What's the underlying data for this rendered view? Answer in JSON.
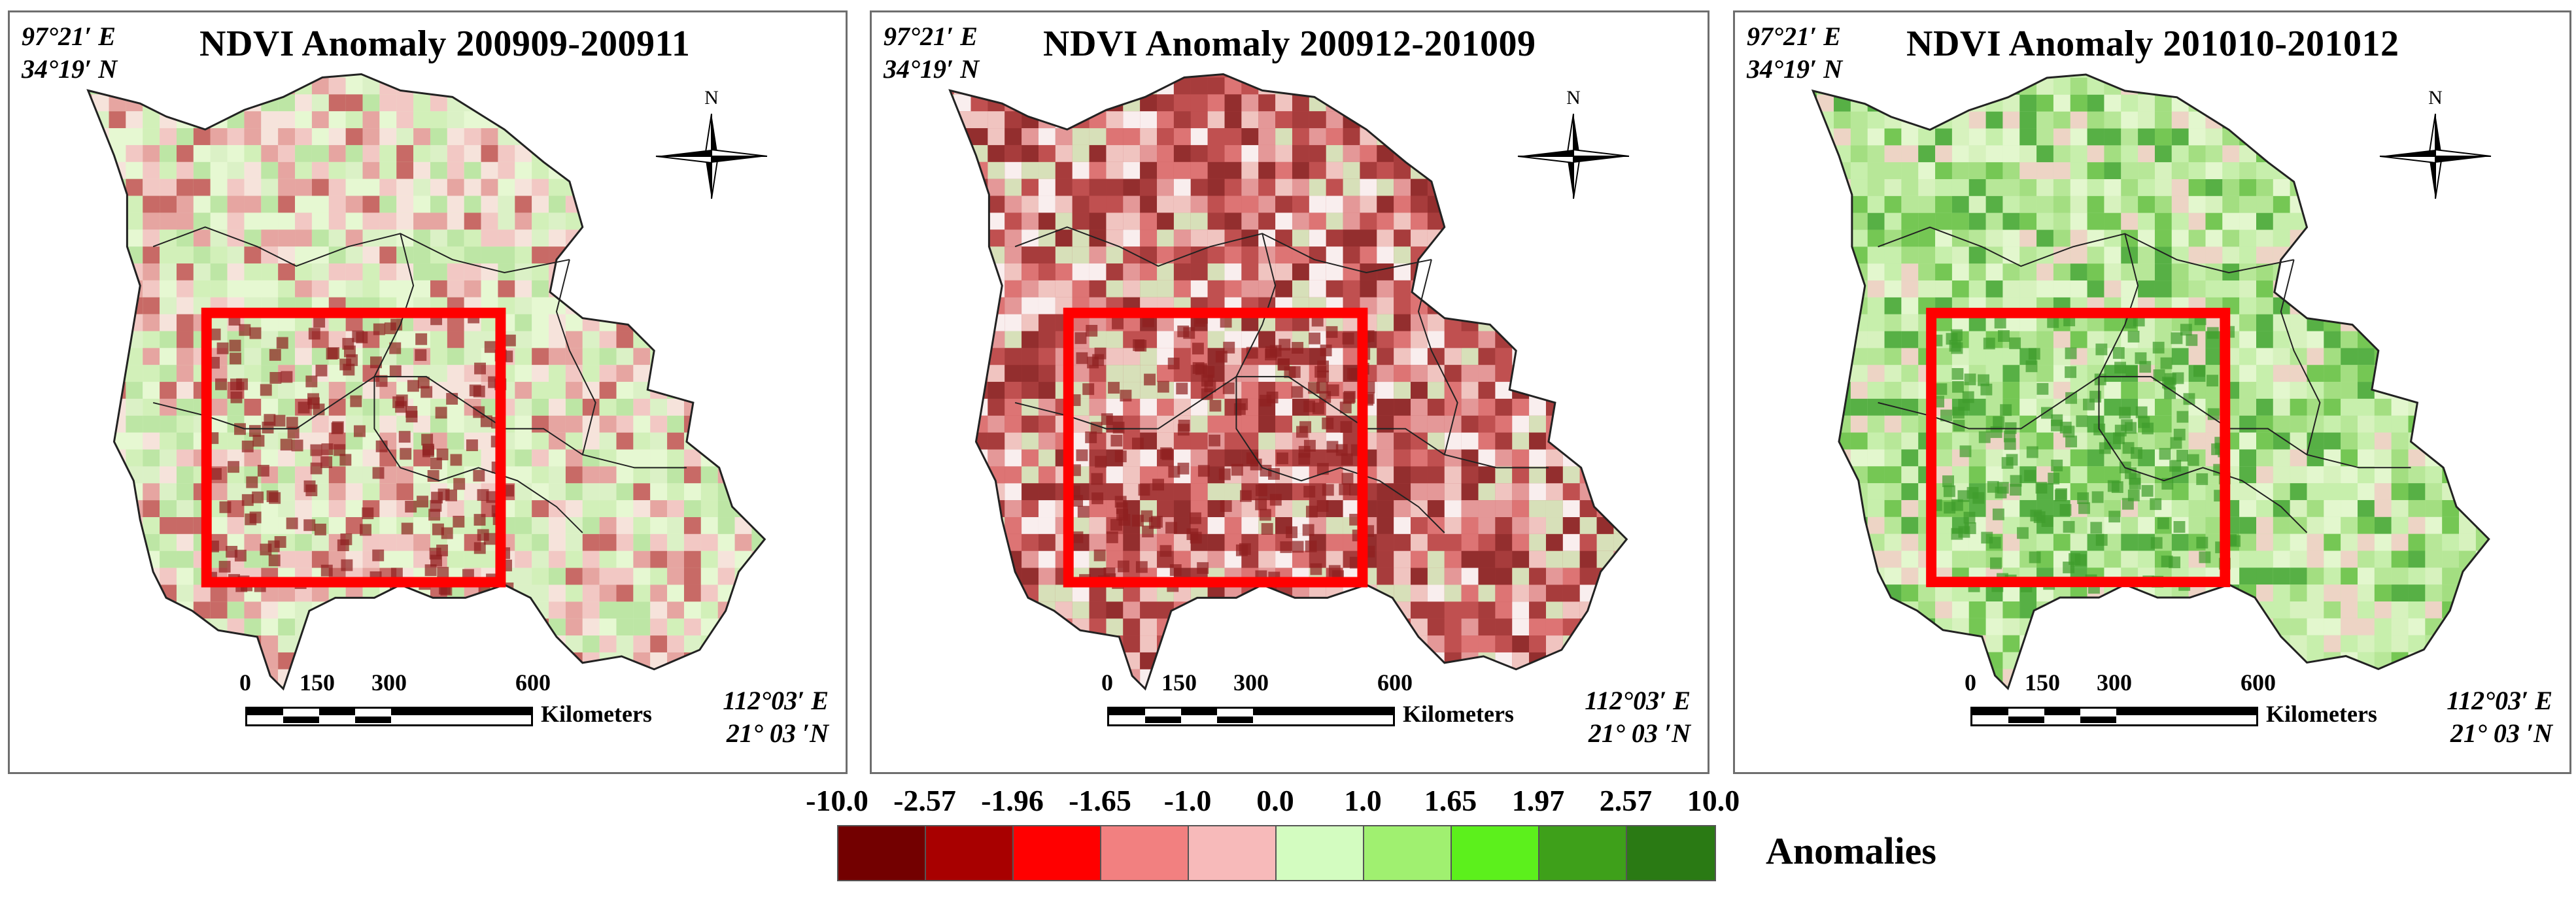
{
  "panels": [
    {
      "title": "NDVI Anomaly 200909-200911",
      "theme": "red",
      "nw_lon": "97°21′ E",
      "nw_lat": "34°19′ N",
      "se_lon": "112°03′ E",
      "se_lat": "21°  03 ′N"
    },
    {
      "title": "NDVI Anomaly 200912-201009",
      "theme": "darkred",
      "nw_lon": "97°21′ E",
      "nw_lat": "34°19′ N",
      "se_lon": "112°03′ E",
      "se_lat": "21°  03 ′N"
    },
    {
      "title": "NDVI Anomaly 201010-201012",
      "theme": "green",
      "nw_lon": "97°21′ E",
      "nw_lat": "34°19′ N",
      "se_lon": "112°03′ E",
      "se_lat": "21°  03 ′N"
    }
  ],
  "north_label": "N",
  "scale": {
    "ticks": [
      "0",
      "150",
      "300",
      "600"
    ],
    "unit": "Kilometers"
  },
  "legend": {
    "title": "Anomalies",
    "breaks": [
      "-10.0",
      "-2.57",
      "-1.96",
      "-1.65",
      "-1.0",
      "0.0",
      "1.0",
      "1.65",
      "1.97",
      "2.57",
      "10.0"
    ],
    "colors": [
      "#730000",
      "#a80000",
      "#ff0000",
      "#f28080",
      "#f7baba",
      "#d3fcc0",
      "#a0f070",
      "#5cf01c",
      "#3ea01a",
      "#2a7a14"
    ]
  }
}
